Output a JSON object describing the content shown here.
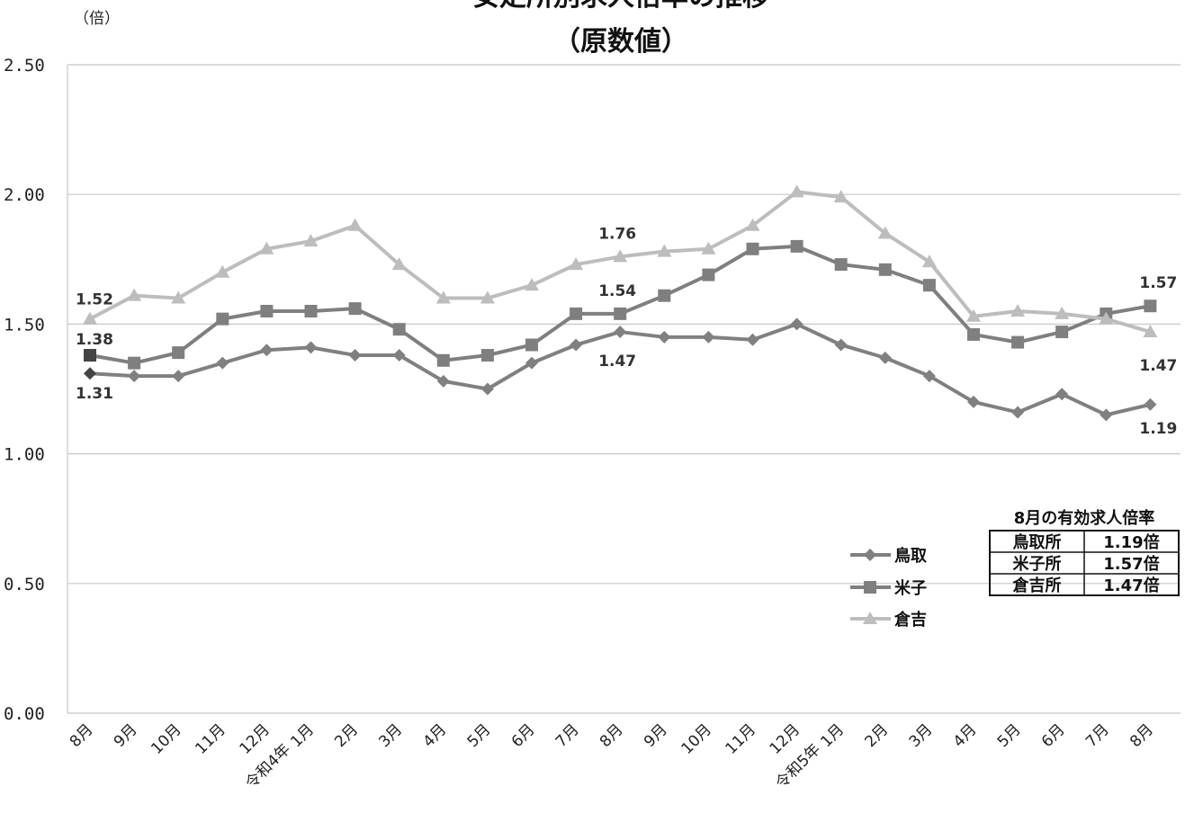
{
  "chart_data": {
    "type": "line",
    "title": "安定所別求人倍率の推移",
    "subtitle": "（原数値）",
    "ylabel": "（倍）",
    "ylim": [
      0,
      2.5
    ],
    "yticks": [
      "0.00",
      "0.50",
      "1.00",
      "1.50",
      "2.00",
      "2.50"
    ],
    "yticks_values": [
      0,
      0.5,
      1.0,
      1.5,
      2.0,
      2.5
    ],
    "grid": true,
    "legend_position": "lower-right",
    "categories": [
      "8月",
      "9月",
      "10月",
      "11月",
      "12月",
      "1月",
      "2月",
      "3月",
      "4月",
      "5月",
      "6月",
      "7月",
      "8月",
      "9月",
      "10月",
      "11月",
      "12月",
      "1月",
      "2月",
      "3月",
      "4月",
      "5月",
      "6月",
      "7月",
      "8月"
    ],
    "era_labels": [
      {
        "index": 5,
        "text": "令和4年"
      },
      {
        "index": 17,
        "text": "令和5年"
      }
    ],
    "series": [
      {
        "name": "鳥取",
        "marker": "diamond",
        "color": "#808080",
        "values": [
          1.31,
          1.3,
          1.3,
          1.35,
          1.4,
          1.41,
          1.38,
          1.38,
          1.28,
          1.25,
          1.35,
          1.42,
          1.47,
          1.45,
          1.45,
          1.44,
          1.5,
          1.42,
          1.37,
          1.3,
          1.2,
          1.16,
          1.23,
          1.15,
          1.19
        ]
      },
      {
        "name": "米子",
        "marker": "square",
        "color": "#7f7f7f",
        "values": [
          1.38,
          1.35,
          1.39,
          1.52,
          1.55,
          1.55,
          1.56,
          1.48,
          1.36,
          1.38,
          1.42,
          1.54,
          1.54,
          1.61,
          1.69,
          1.79,
          1.8,
          1.73,
          1.71,
          1.65,
          1.46,
          1.43,
          1.47,
          1.54,
          1.57
        ]
      },
      {
        "name": "倉吉",
        "marker": "triangle",
        "color": "#bdbdbd",
        "values": [
          1.52,
          1.61,
          1.6,
          1.7,
          1.79,
          1.82,
          1.88,
          1.73,
          1.6,
          1.6,
          1.65,
          1.73,
          1.76,
          1.78,
          1.79,
          1.88,
          2.01,
          1.99,
          1.85,
          1.74,
          1.53,
          1.55,
          1.54,
          1.52,
          1.47
        ]
      }
    ],
    "annotations": [
      {
        "text": "1.52",
        "series": "倉吉",
        "index": 0
      },
      {
        "text": "1.38",
        "series": "米子",
        "index": 0
      },
      {
        "text": "1.31",
        "series": "鳥取",
        "index": 0
      },
      {
        "text": "1.76",
        "series": "倉吉",
        "index": 12
      },
      {
        "text": "1.54",
        "series": "米子",
        "index": 12
      },
      {
        "text": "1.47",
        "series": "鳥取",
        "index": 12
      },
      {
        "text": "1.57",
        "series": "米子",
        "index": 24
      },
      {
        "text": "1.47",
        "series": "倉吉",
        "index": 24
      },
      {
        "text": "1.19",
        "series": "鳥取",
        "index": 24
      }
    ],
    "summary_table": {
      "title": "8月の有効求人倍率",
      "rows": [
        {
          "office": "鳥取所",
          "value": "1.19倍"
        },
        {
          "office": "米子所",
          "value": "1.57倍"
        },
        {
          "office": "倉吉所",
          "value": "1.47倍"
        }
      ]
    }
  }
}
